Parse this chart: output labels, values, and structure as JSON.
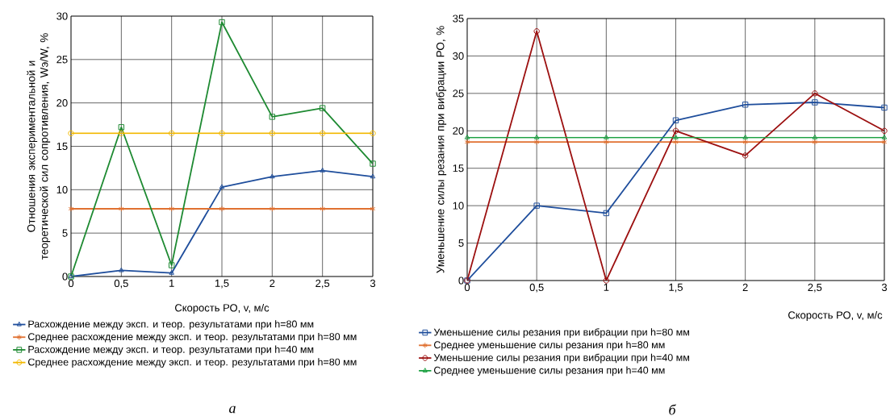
{
  "chart_data": [
    {
      "type": "line",
      "xlabel": "Скорость РО, v, м/с",
      "ylabel": "Отношения экспериментальной и теоретической сил сопротивления, Wэ/W, %",
      "x": [
        0,
        0.5,
        1,
        1.5,
        2,
        2.5,
        3
      ],
      "xlim": [
        0,
        3
      ],
      "xticks": [
        0,
        {
          "value": 0.5,
          "label": "0,5"
        },
        1,
        {
          "value": 1.5,
          "label": "1,5"
        },
        2,
        {
          "value": 2.5,
          "label": "2,5"
        },
        3
      ],
      "ylim": [
        0,
        30
      ],
      "yticks": [
        0,
        5,
        10,
        15,
        20,
        25,
        30
      ],
      "grid": true,
      "legend": "bottom",
      "series": [
        {
          "name": "Расхождение между эксп. и теор. результатами при h=80 мм",
          "color": "#1f4e9c",
          "marker": "triangle",
          "values": [
            0,
            0.7,
            0.4,
            10.3,
            11.5,
            12.2,
            11.5
          ]
        },
        {
          "name": "Среднее расхождение между эксп. и теор. результатами при h=80 мм",
          "color": "#e07030",
          "marker": "cross",
          "values": [
            7.8,
            7.8,
            7.8,
            7.8,
            7.8,
            7.8,
            7.8
          ]
        },
        {
          "name": "Расхождение между эксп. и теор. результатами при h=40 мм",
          "color": "#1e8a32",
          "marker": "square",
          "values": [
            0,
            17.2,
            1.3,
            29.3,
            18.4,
            19.4,
            13
          ]
        },
        {
          "name": "Среднее расхождение между эксп. и теор. результатами при h=80 мм",
          "color": "#f2b800",
          "marker": "circle",
          "values": [
            16.5,
            16.5,
            16.5,
            16.5,
            16.5,
            16.5,
            16.5
          ]
        }
      ],
      "annotations": [
        "а"
      ]
    },
    {
      "type": "line",
      "xlabel": "Скорость РО, v, м/с",
      "ylabel": "Уменьшение силы резания при вибрации РО, %",
      "x": [
        0,
        0.5,
        1,
        1.5,
        2,
        2.5,
        3
      ],
      "xlim": [
        0,
        3
      ],
      "xticks": [
        0,
        {
          "value": 0.5,
          "label": "0,5"
        },
        1,
        {
          "value": 1.5,
          "label": "1,5"
        },
        2,
        {
          "value": 2.5,
          "label": "2,5"
        },
        3
      ],
      "ylim": [
        0,
        35
      ],
      "yticks": [
        0,
        5,
        10,
        15,
        20,
        25,
        30,
        35
      ],
      "grid": true,
      "legend": "bottom",
      "series": [
        {
          "name": "Уменьшение силы резания при вибрации при h=80 мм",
          "color": "#1f4e9c",
          "marker": "square",
          "values": [
            0,
            10,
            9,
            21.4,
            23.5,
            23.8,
            23.1
          ]
        },
        {
          "name": "Среднее уменьшение силы резания при h=80 мм",
          "color": "#e07030",
          "marker": "cross",
          "values": [
            18.5,
            18.5,
            18.5,
            18.5,
            18.5,
            18.5,
            18.5
          ]
        },
        {
          "name": "Уменьшение силы резания при вибрации при h=40 мм",
          "color": "#9c1010",
          "marker": "circle",
          "values": [
            0,
            33.3,
            0,
            20,
            16.7,
            25,
            20
          ]
        },
        {
          "name": "Среднее уменьшение силы резания при h=40 мм",
          "color": "#1aa040",
          "marker": "triangle",
          "values": [
            19.1,
            19.1,
            19.1,
            19.1,
            19.1,
            19.1,
            19.1
          ]
        }
      ],
      "annotations": [
        "б"
      ]
    }
  ]
}
